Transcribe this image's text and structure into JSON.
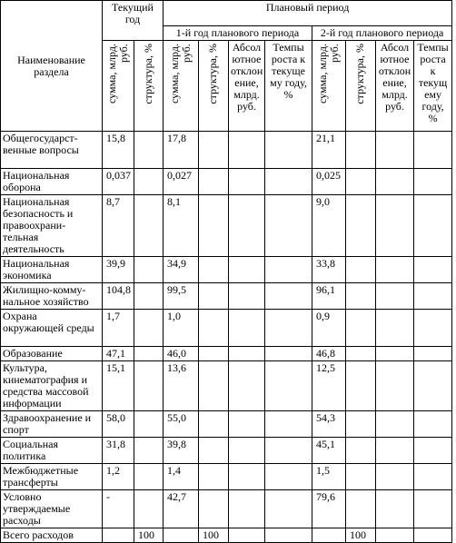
{
  "headers": {
    "name": "Наименование раздела",
    "current_year": "Текущий год",
    "planned_period": "Плановый период",
    "year1": "1-й год планового периода",
    "year2": "2-й год планового периода",
    "sum": "сумма, млрд. руб.",
    "structure": "структура, %",
    "abs_dev": "Абсол ютное отклон ение, млрд. руб.",
    "growth1": "Темпы роста к текуще му году, %",
    "growth2": "Темпы роста к текущ ему году, %"
  },
  "rows": [
    {
      "name": "Общегосударст-венные вопросы",
      "cur_sum": "15,8",
      "cur_str": "",
      "y1_sum": "17,8",
      "y1_str": "",
      "y1_abs": "",
      "y1_grw": "",
      "y2_sum": "21,1",
      "y2_str": "",
      "y2_abs": "",
      "y2_grw": ""
    },
    {
      "name": "Национальная оборона",
      "cur_sum": "0,037",
      "cur_str": "",
      "y1_sum": "0,027",
      "y1_str": "",
      "y1_abs": "",
      "y1_grw": "",
      "y2_sum": "0,025",
      "y2_str": "",
      "y2_abs": "",
      "y2_grw": ""
    },
    {
      "name": "Национальная безопасность и правоохрани-тельная деятельность",
      "cur_sum": "8,7",
      "cur_str": "",
      "y1_sum": "8,1",
      "y1_str": "",
      "y1_abs": "",
      "y1_grw": "",
      "y2_sum": "9,0",
      "y2_str": "",
      "y2_abs": "",
      "y2_grw": ""
    },
    {
      "name": "Национальная экономика",
      "cur_sum": "39,9",
      "cur_str": "",
      "y1_sum": "34,9",
      "y1_str": "",
      "y1_abs": "",
      "y1_grw": "",
      "y2_sum": "33,8",
      "y2_str": "",
      "y2_abs": "",
      "y2_grw": ""
    },
    {
      "name": "Жилищно-комму-нальное хозяйство",
      "cur_sum": "104,8",
      "cur_str": "",
      "y1_sum": "99,5",
      "y1_str": "",
      "y1_abs": "",
      "y1_grw": "",
      "y2_sum": "96,1",
      "y2_str": "",
      "y2_abs": "",
      "y2_grw": ""
    },
    {
      "name": "Охрана окружающей среды",
      "cur_sum": "1,7",
      "cur_str": "",
      "y1_sum": "1,0",
      "y1_str": "",
      "y1_abs": "",
      "y1_grw": "",
      "y2_sum": "0,9",
      "y2_str": "",
      "y2_abs": "",
      "y2_grw": ""
    },
    {
      "name": "Образование",
      "cur_sum": "47,1",
      "cur_str": "",
      "y1_sum": "46,0",
      "y1_str": "",
      "y1_abs": "",
      "y1_grw": "",
      "y2_sum": "46,8",
      "y2_str": "",
      "y2_abs": "",
      "y2_grw": ""
    },
    {
      "name": "Культура, кинематография и средства массовой информации",
      "cur_sum": "15,1",
      "cur_str": "",
      "y1_sum": "13,6",
      "y1_str": "",
      "y1_abs": "",
      "y1_grw": "",
      "y2_sum": "12,5",
      "y2_str": "",
      "y2_abs": "",
      "y2_grw": ""
    },
    {
      "name": "Здравоохранение и спорт",
      "cur_sum": "58,0",
      "cur_str": "",
      "y1_sum": "55,0",
      "y1_str": "",
      "y1_abs": "",
      "y1_grw": "",
      "y2_sum": "54,3",
      "y2_str": "",
      "y2_abs": "",
      "y2_grw": ""
    },
    {
      "name": "Социальная политика",
      "cur_sum": "31,8",
      "cur_str": "",
      "y1_sum": "39,8",
      "y1_str": "",
      "y1_abs": "",
      "y1_grw": "",
      "y2_sum": "45,1",
      "y2_str": "",
      "y2_abs": "",
      "y2_grw": ""
    },
    {
      "name": "Межбюджетные трансферты",
      "cur_sum": "1,2",
      "cur_str": "",
      "y1_sum": "1,4",
      "y1_str": "",
      "y1_abs": "",
      "y1_grw": "",
      "y2_sum": "1,5",
      "y2_str": "",
      "y2_abs": "",
      "y2_grw": ""
    },
    {
      "name": "Условно утверждаемые расходы",
      "cur_sum": "-",
      "cur_str": "",
      "y1_sum": "42,7",
      "y1_str": "",
      "y1_abs": "",
      "y1_grw": "",
      "y2_sum": "79,6",
      "y2_str": "",
      "y2_abs": "",
      "y2_grw": ""
    },
    {
      "name": "Всего расходов",
      "cur_sum": "",
      "cur_str": "100",
      "y1_sum": "",
      "y1_str": "100",
      "y1_abs": "",
      "y1_grw": "",
      "y2_sum": "",
      "y2_str": "100",
      "y2_abs": "",
      "y2_grw": ""
    }
  ]
}
